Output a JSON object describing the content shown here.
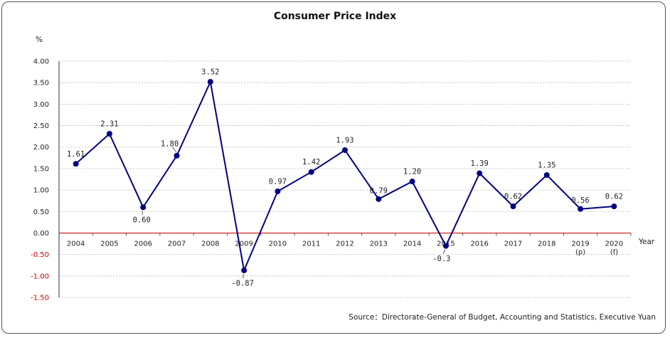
{
  "chart_data": {
    "type": "line",
    "title": "Consumer Price Index",
    "ylabel": "%",
    "xlabel": "Year",
    "ylim": [
      -1.5,
      4.0
    ],
    "ytick_step": 0.5,
    "yticks": [
      "4.00",
      "3.50",
      "3.00",
      "2.50",
      "2.00",
      "1.50",
      "1.00",
      "0.50",
      "0.00",
      "-0.50",
      "-1.00",
      "-1.50"
    ],
    "categories": [
      "2004",
      "2005",
      "2006",
      "2007",
      "2008",
      "2009",
      "2010",
      "2011",
      "2012",
      "2013",
      "2014",
      "2015",
      "2016",
      "2017",
      "2018",
      "2019",
      "2020"
    ],
    "category_sublabels": [
      "",
      "",
      "",
      "",
      "",
      "",
      "",
      "",
      "",
      "",
      "",
      "",
      "",
      "",
      "",
      "(p)",
      "(f)"
    ],
    "series": [
      {
        "name": "CPI",
        "color": "#000080",
        "values": [
          1.61,
          2.31,
          0.6,
          1.8,
          3.52,
          -0.87,
          0.97,
          1.42,
          1.93,
          0.79,
          1.2,
          -0.3,
          1.39,
          0.62,
          1.35,
          0.56,
          0.62
        ],
        "labels": [
          "1.61",
          "2.31",
          "0.60",
          "1.80",
          "3.52",
          "-0.87",
          "0.97",
          "1.42",
          "1.93",
          "0.79",
          "1.20",
          "-0.3",
          "1.39",
          "0.62",
          "1.35",
          "0.56",
          "0.62"
        ]
      }
    ],
    "grid": true,
    "negative_tick_color": "#cc0000",
    "zero_line_color": "#cc0000",
    "source": "Source：Directorate-General of Budget, Accounting and Statistics, Executive Yuan"
  }
}
